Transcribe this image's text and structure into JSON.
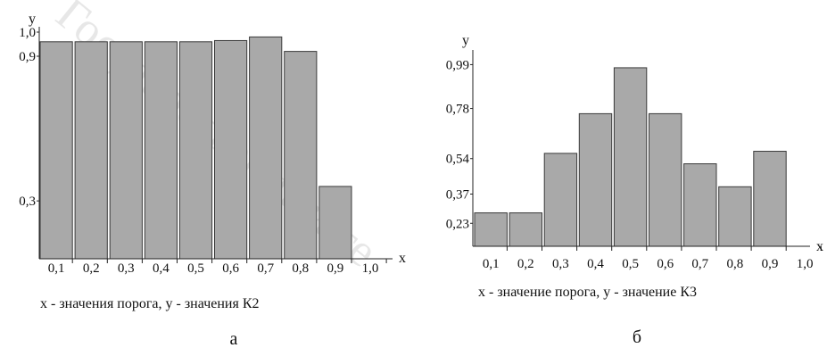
{
  "watermark": "Государственный те",
  "chart_data": [
    {
      "type": "bar",
      "panel_letter": "а",
      "caption": "x - значения порога, y - значения К2",
      "xlabel": "x",
      "ylabel": "y",
      "categories": [
        "0,1",
        "0,2",
        "0,3",
        "0,4",
        "0,5",
        "0,6",
        "0,7",
        "0,8",
        "0,9",
        "1,0"
      ],
      "values": [
        0.96,
        0.96,
        0.96,
        0.96,
        0.96,
        0.965,
        0.98,
        0.92,
        0.36,
        null
      ],
      "y_ticks": [
        {
          "value": 1.0,
          "label": "1,0"
        },
        {
          "value": 0.9,
          "label": "0,9"
        },
        {
          "value": 0.3,
          "label": "0,3"
        }
      ],
      "ylim": [
        0.06,
        1.0
      ],
      "bar_color": "#a9a9a9",
      "grid": false
    },
    {
      "type": "bar",
      "panel_letter": "б",
      "caption": "x - значение порога, y - значение К3",
      "xlabel": "x",
      "ylabel": "y",
      "categories": [
        "0,1",
        "0,2",
        "0,3",
        "0,4",
        "0,5",
        "0,6",
        "0,7",
        "0,8",
        "0,9",
        "1,0"
      ],
      "values": [
        0.28,
        0.28,
        0.565,
        0.755,
        0.975,
        0.755,
        0.515,
        0.405,
        0.575,
        null
      ],
      "y_ticks": [
        {
          "value": 0.99,
          "label": "0,99"
        },
        {
          "value": 0.78,
          "label": "0,78"
        },
        {
          "value": 0.54,
          "label": "0,54"
        },
        {
          "value": 0.37,
          "label": "0,37"
        },
        {
          "value": 0.23,
          "label": "0,23"
        }
      ],
      "ylim": [
        0.12,
        1.12
      ],
      "bar_color": "#a9a9a9",
      "grid": false
    }
  ]
}
